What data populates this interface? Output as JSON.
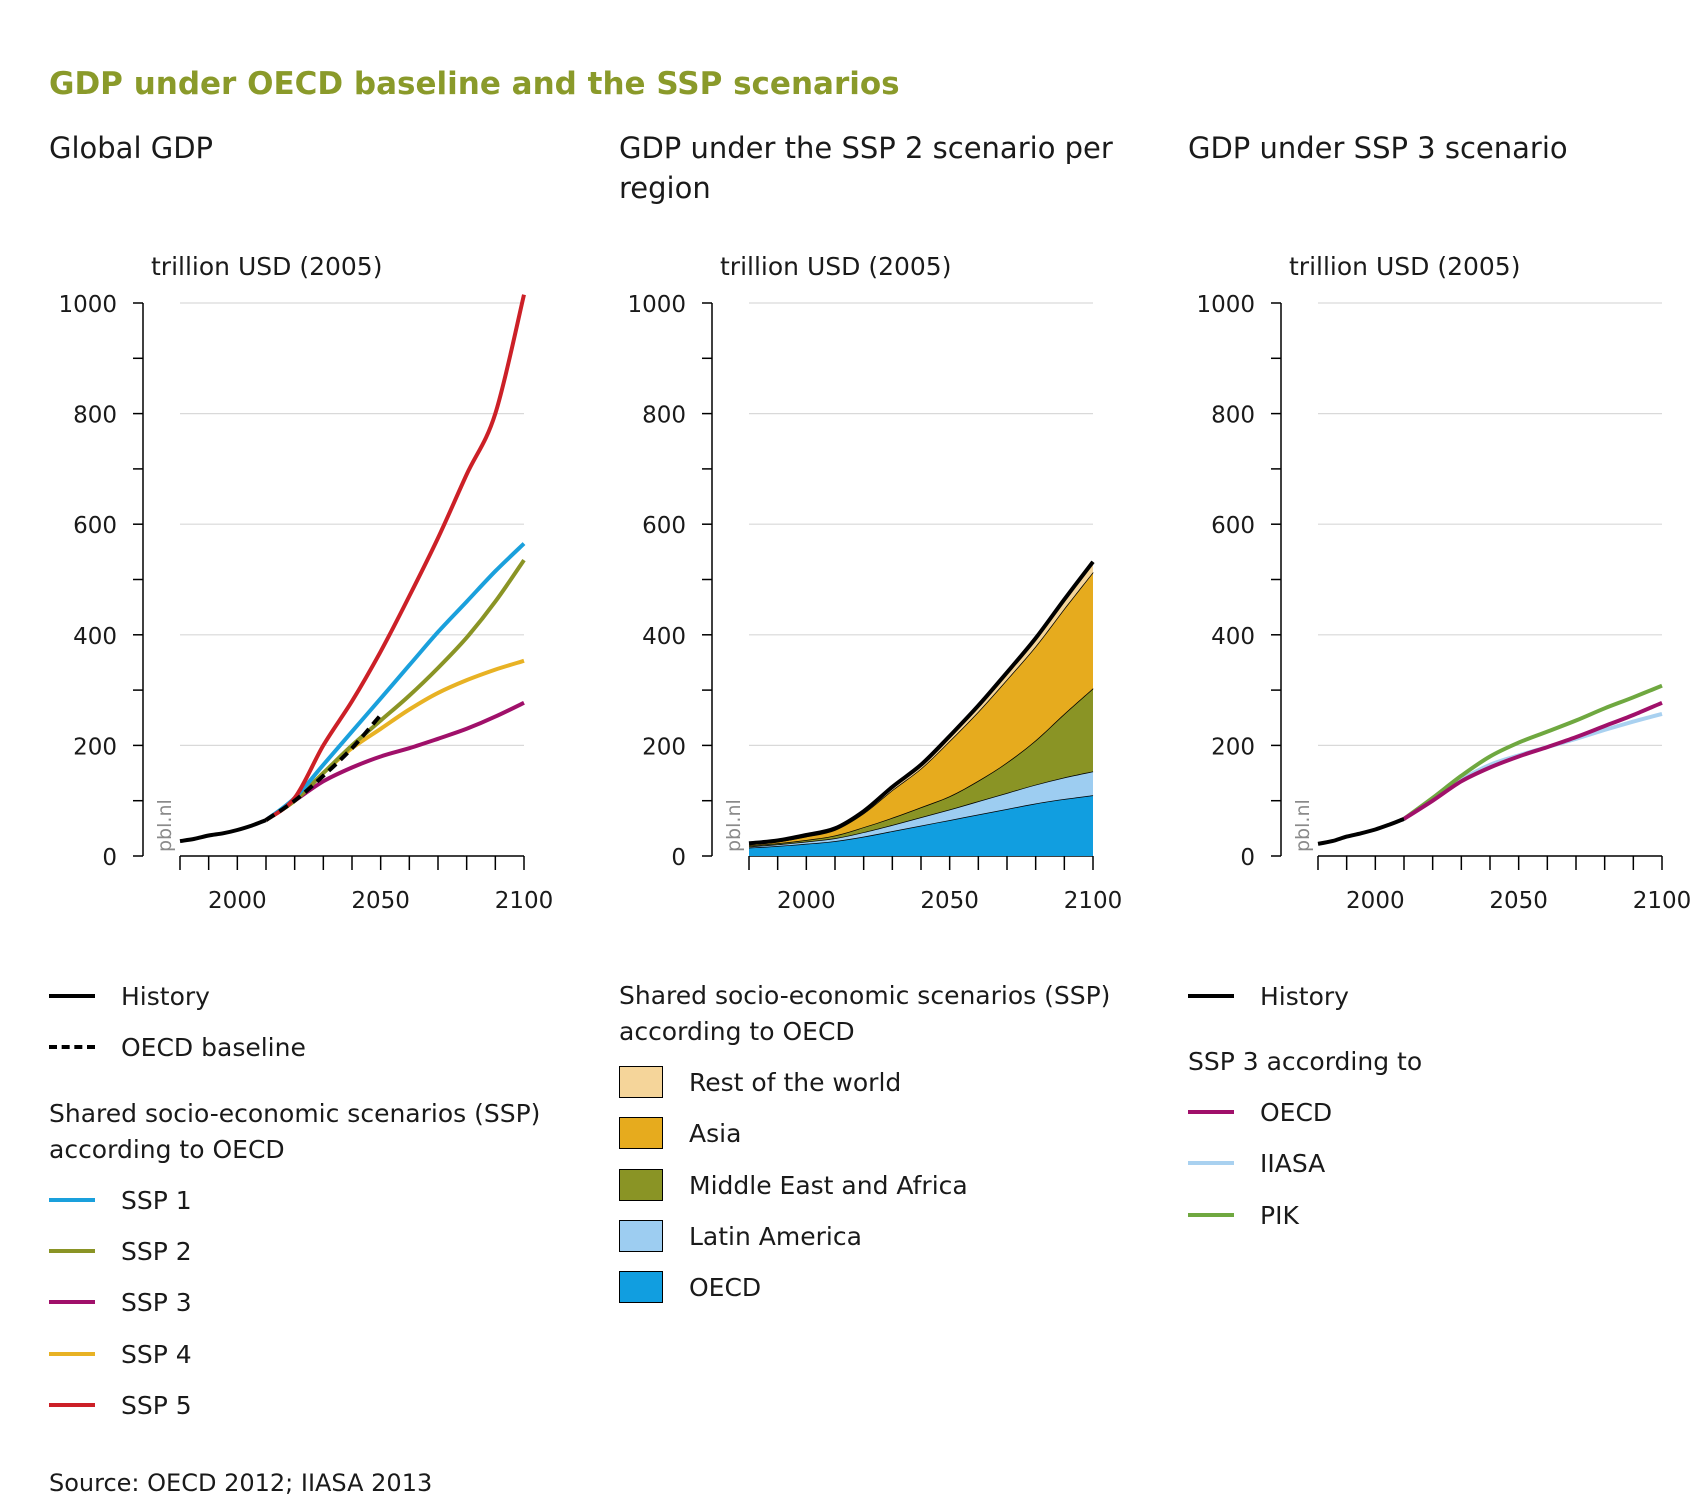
{
  "title": "GDP under OECD baseline and the SSP scenarios",
  "source": "Source: OECD 2012; IIASA 2013",
  "colors": {
    "title": "#8a9a2a",
    "history": "#000000",
    "ssp1": "#1aa0dc",
    "ssp2": "#8a9425",
    "ssp3": "#a0106a",
    "ssp4": "#e8b224",
    "ssp5": "#cc2027",
    "rest_of_world": "#f5d59a",
    "asia": "#e6ab1e",
    "mea": "#8a9425",
    "latam": "#9dcdf1",
    "oecd_area": "#119ee0",
    "iiasa": "#a9d1f0",
    "pik": "#6fa840"
  },
  "panels": [
    {
      "title": "Global GDP",
      "ylabel": "trillion USD (2005)",
      "watermark": "pbl.nl"
    },
    {
      "title": "GDP under the SSP 2 scenario per region",
      "ylabel": "trillion USD (2005)",
      "watermark": "pbl.nl"
    },
    {
      "title": "GDP under SSP 3 scenario",
      "ylabel": "trillion USD (2005)",
      "watermark": "pbl.nl"
    }
  ],
  "legend1": {
    "history": "History",
    "baseline": "OECD baseline",
    "heading": "Shared socio-economic scenarios (SSP) according to OECD",
    "items": [
      "SSP 1",
      "SSP 2",
      "SSP 3",
      "SSP 4",
      "SSP 5"
    ]
  },
  "legend2": {
    "heading": "Shared socio-economic scenarios (SSP) according to OECD",
    "items": [
      "Rest of the world",
      "Asia",
      "Middle East and Africa",
      "Latin America",
      "OECD"
    ]
  },
  "legend3": {
    "history": "History",
    "heading": "SSP 3 according to",
    "items": [
      "OECD",
      "IIASA",
      "PIK"
    ]
  },
  "chart_data": [
    {
      "type": "line",
      "title": "Global GDP",
      "ylabel": "trillion USD (2005)",
      "xlim": [
        1980,
        2100
      ],
      "ylim": [
        0,
        1000
      ],
      "xticks": [
        2000,
        2050,
        2100
      ],
      "yticks": [
        0,
        200,
        400,
        600,
        800,
        1000
      ],
      "grid": true,
      "legend": "below",
      "series": [
        {
          "name": "History",
          "x": [
            1980,
            1985,
            1990,
            1995,
            2000,
            2005,
            2010
          ],
          "y": [
            27,
            31,
            37,
            41,
            47,
            55,
            65
          ]
        },
        {
          "name": "OECD baseline",
          "x": [
            2010,
            2020,
            2030,
            2040,
            2050
          ],
          "y": [
            65,
            100,
            145,
            195,
            255
          ]
        },
        {
          "name": "SSP 1",
          "x": [
            2010,
            2020,
            2030,
            2040,
            2050,
            2060,
            2070,
            2080,
            2090,
            2100
          ],
          "y": [
            65,
            105,
            165,
            225,
            285,
            345,
            405,
            460,
            515,
            565
          ]
        },
        {
          "name": "SSP 2",
          "x": [
            2010,
            2020,
            2030,
            2040,
            2050,
            2060,
            2070,
            2080,
            2090,
            2100
          ],
          "y": [
            65,
            100,
            150,
            200,
            245,
            290,
            340,
            395,
            460,
            535
          ]
        },
        {
          "name": "SSP 3",
          "x": [
            2010,
            2020,
            2030,
            2040,
            2050,
            2060,
            2070,
            2080,
            2090,
            2100
          ],
          "y": [
            65,
            100,
            135,
            160,
            180,
            195,
            212,
            230,
            252,
            277
          ]
        },
        {
          "name": "SSP 4",
          "x": [
            2010,
            2020,
            2030,
            2040,
            2050,
            2060,
            2070,
            2080,
            2090,
            2100
          ],
          "y": [
            65,
            100,
            150,
            195,
            230,
            265,
            295,
            318,
            337,
            353
          ]
        },
        {
          "name": "SSP 5",
          "x": [
            2010,
            2020,
            2030,
            2040,
            2050,
            2060,
            2070,
            2080,
            2090,
            2100
          ],
          "y": [
            65,
            105,
            200,
            280,
            370,
            470,
            575,
            690,
            800,
            1015
          ]
        }
      ]
    },
    {
      "type": "area",
      "title": "GDP under the SSP 2 scenario per region",
      "ylabel": "trillion USD (2005)",
      "xlim": [
        1980,
        2100
      ],
      "ylim": [
        0,
        1000
      ],
      "xticks": [
        2000,
        2050,
        2100
      ],
      "yticks": [
        0,
        200,
        400,
        600,
        800,
        1000
      ],
      "grid": true,
      "legend": "below",
      "stacked": true,
      "x": [
        1980,
        1990,
        2000,
        2010,
        2020,
        2030,
        2040,
        2050,
        2060,
        2070,
        2080,
        2090,
        2100
      ],
      "series": [
        {
          "name": "OECD",
          "values": [
            15,
            18,
            22,
            27,
            35,
            45,
            55,
            65,
            75,
            85,
            95,
            103,
            110
          ]
        },
        {
          "name": "Latin America",
          "values": [
            2,
            3,
            4,
            5,
            8,
            11,
            15,
            19,
            24,
            29,
            34,
            39,
            43
          ]
        },
        {
          "name": "Middle East and Africa",
          "values": [
            2,
            2,
            3,
            5,
            9,
            13,
            18,
            24,
            37,
            55,
            80,
            115,
            150
          ]
        },
        {
          "name": "Asia",
          "values": [
            2,
            3,
            6,
            10,
            25,
            50,
            70,
            100,
            125,
            150,
            170,
            190,
            210
          ]
        },
        {
          "name": "Rest of the world",
          "values": [
            2,
            2,
            3,
            3,
            4,
            6,
            7,
            9,
            11,
            13,
            15,
            17,
            19
          ]
        }
      ],
      "total": [
        23,
        28,
        38,
        50,
        81,
        125,
        165,
        217,
        272,
        332,
        394,
        464,
        532
      ]
    },
    {
      "type": "line",
      "title": "GDP under SSP 3 scenario",
      "ylabel": "trillion USD (2005)",
      "xlim": [
        1980,
        2100
      ],
      "ylim": [
        0,
        1000
      ],
      "xticks": [
        2000,
        2050,
        2100
      ],
      "yticks": [
        0,
        200,
        400,
        600,
        800,
        1000
      ],
      "grid": true,
      "legend": "below",
      "series": [
        {
          "name": "History",
          "x": [
            1980,
            1985,
            1990,
            1995,
            2000,
            2005,
            2010
          ],
          "y": [
            22,
            27,
            35,
            41,
            48,
            57,
            67
          ]
        },
        {
          "name": "OECD",
          "x": [
            2010,
            2020,
            2030,
            2040,
            2050,
            2060,
            2070,
            2080,
            2090,
            2100
          ],
          "y": [
            67,
            100,
            135,
            160,
            180,
            197,
            215,
            235,
            255,
            277
          ]
        },
        {
          "name": "IIASA",
          "x": [
            2010,
            2020,
            2030,
            2040,
            2050,
            2060,
            2070,
            2080,
            2090,
            2100
          ],
          "y": [
            67,
            102,
            138,
            165,
            182,
            197,
            212,
            228,
            243,
            257
          ]
        },
        {
          "name": "PIK",
          "x": [
            2010,
            2020,
            2030,
            2040,
            2050,
            2060,
            2070,
            2080,
            2090,
            2100
          ],
          "y": [
            67,
            105,
            145,
            180,
            205,
            225,
            245,
            267,
            287,
            308
          ]
        }
      ]
    }
  ]
}
